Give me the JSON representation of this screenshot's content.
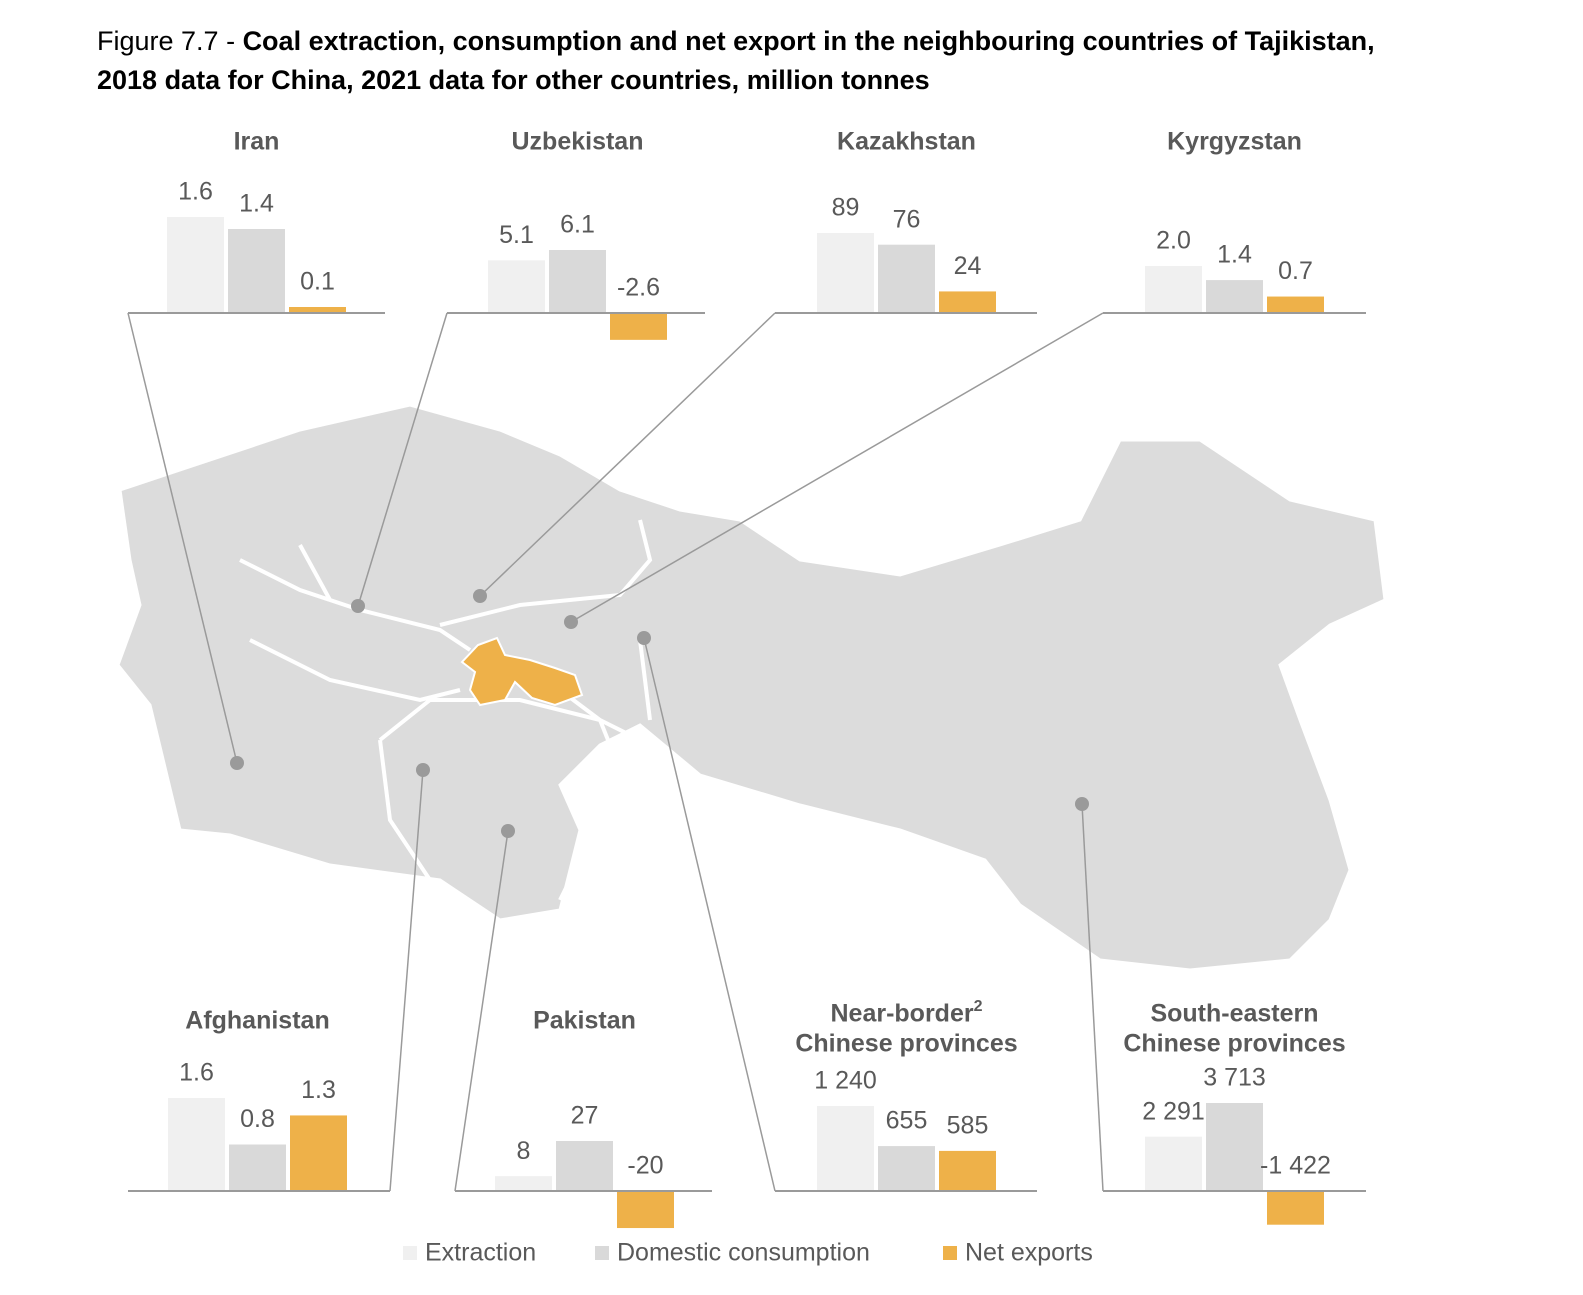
{
  "figure_label": "Figure 7.7 - ",
  "title": [
    "Coal extraction, consumption and net export in the neighbouring countries of Tajikistan,",
    "2018 data for China, 2021 data for other countries, million tonnes"
  ],
  "legend": {
    "names": [
      "Extraction",
      "Domestic consumption",
      "Net exports"
    ],
    "colors": [
      "#f0f0f0",
      "#d9d9d9",
      "#eeb149"
    ]
  },
  "chart_data": [
    {
      "type": "bar",
      "title": [
        "Iran"
      ],
      "values": [
        1.6,
        1.4,
        0.1
      ]
    },
    {
      "type": "bar",
      "title": [
        "Uzbekistan"
      ],
      "values": [
        5.1,
        6.1,
        -2.6
      ]
    },
    {
      "type": "bar",
      "title": [
        "Kazakhstan"
      ],
      "values": [
        89,
        76,
        24
      ]
    },
    {
      "type": "bar",
      "title": [
        "Kyrgyzstan"
      ],
      "values": [
        2.0,
        1.4,
        0.7
      ],
      "value_labels": [
        "2.0",
        "1.4",
        "0.7"
      ]
    },
    {
      "type": "bar",
      "title": [
        "Afghanistan"
      ],
      "values": [
        1.6,
        0.8,
        1.3
      ]
    },
    {
      "type": "bar",
      "title": [
        "Pakistan"
      ],
      "values": [
        8,
        27,
        -20
      ]
    },
    {
      "type": "bar",
      "title": [
        "Near-border",
        "Chinese provinces"
      ],
      "title_note": "2",
      "values": [
        1240,
        655,
        585
      ],
      "value_labels": [
        "1 240",
        "655",
        "585"
      ]
    },
    {
      "type": "bar",
      "title": [
        "South-eastern",
        "Chinese provinces"
      ],
      "values": [
        2291,
        3713,
        -1422
      ],
      "value_labels": [
        "2 291",
        "3 713",
        "-1 422"
      ]
    }
  ]
}
